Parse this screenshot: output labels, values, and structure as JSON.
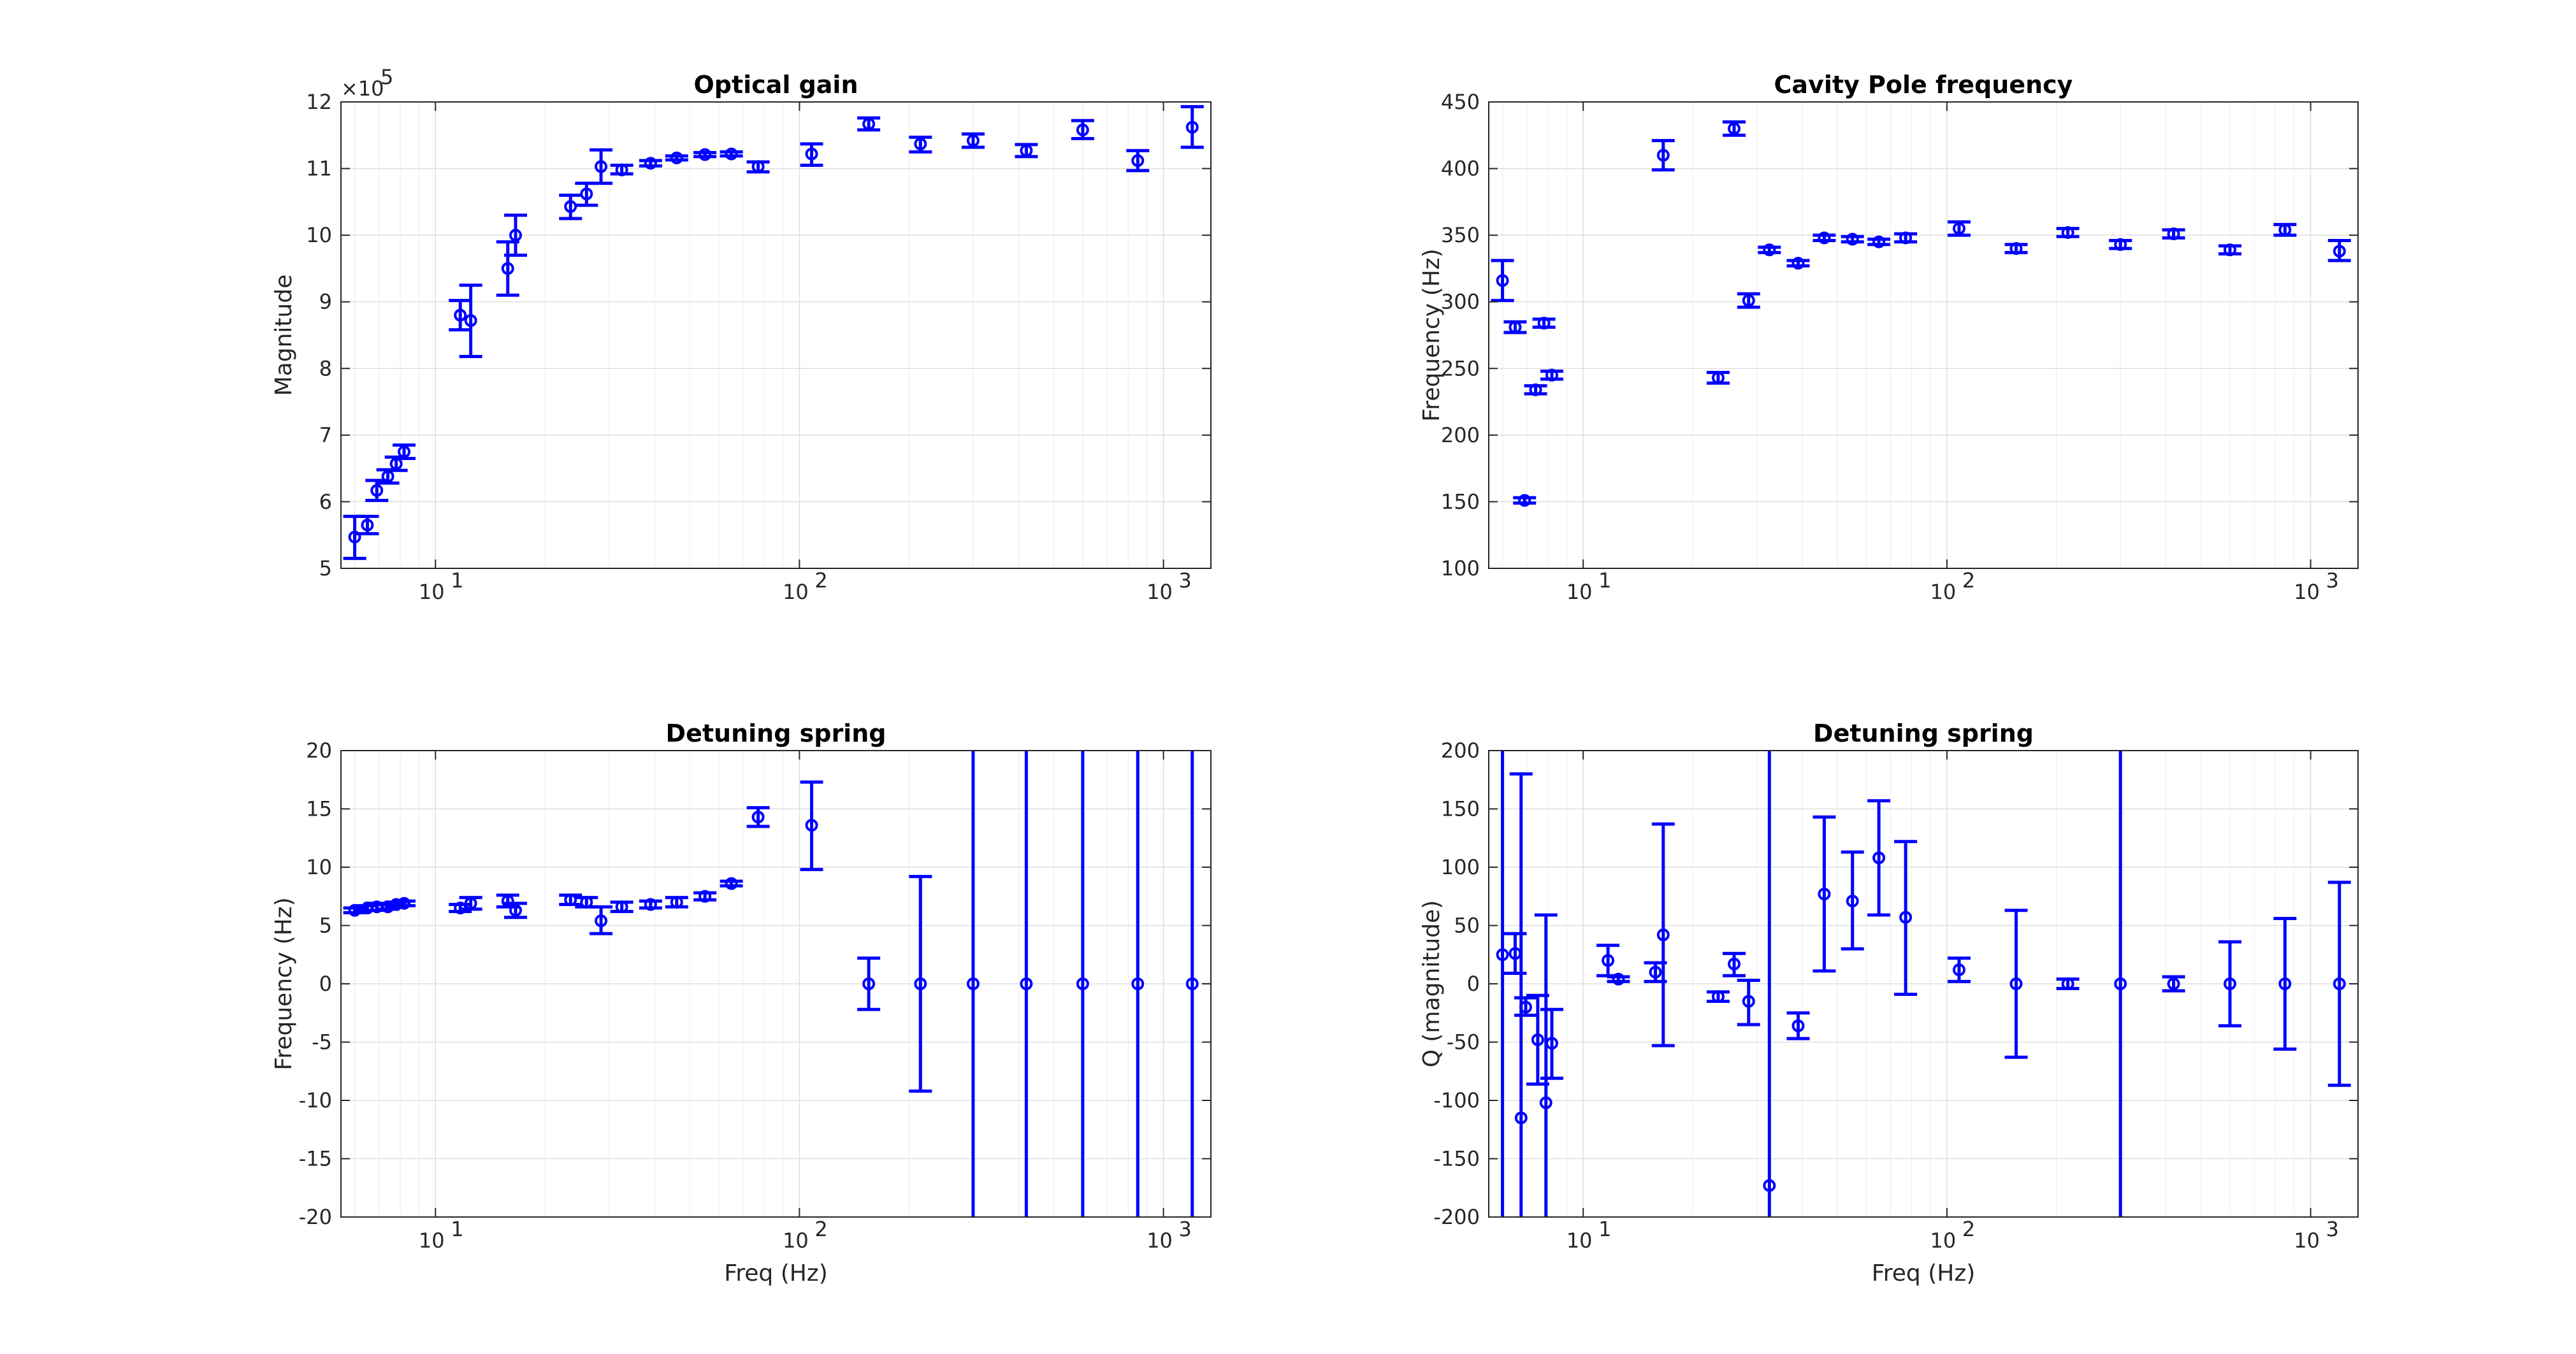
{
  "chart_data": [
    {
      "type": "scatter",
      "title": "Optical gain",
      "xlabel": "",
      "ylabel": "Magnitude",
      "y_exponent_label": "×10",
      "y_exponent_power": "5",
      "xscale": "log",
      "xlim": [
        5.5,
        1350
      ],
      "ylim": [
        5,
        12
      ],
      "yticks": [
        "5",
        "6",
        "7",
        "8",
        "9",
        "10",
        "11",
        "12"
      ],
      "xticks": [
        "10",
        "10",
        "10"
      ],
      "xtick_powers": [
        "1",
        "2",
        "3"
      ],
      "grid": true,
      "points": [
        {
          "x": 6.0,
          "y": 5.47,
          "lo": 5.15,
          "hi": 5.78
        },
        {
          "x": 6.5,
          "y": 5.65,
          "lo": 5.52,
          "hi": 5.78
        },
        {
          "x": 6.9,
          "y": 6.17,
          "lo": 6.02,
          "hi": 6.32
        },
        {
          "x": 7.4,
          "y": 6.38,
          "lo": 6.28,
          "hi": 6.48
        },
        {
          "x": 7.8,
          "y": 6.57,
          "lo": 6.47,
          "hi": 6.67
        },
        {
          "x": 8.2,
          "y": 6.75,
          "lo": 6.65,
          "hi": 6.85
        },
        {
          "x": 11.7,
          "y": 8.8,
          "lo": 8.58,
          "hi": 9.02
        },
        {
          "x": 12.5,
          "y": 8.72,
          "lo": 8.18,
          "hi": 9.25
        },
        {
          "x": 15.8,
          "y": 9.5,
          "lo": 9.1,
          "hi": 9.9
        },
        {
          "x": 16.6,
          "y": 10.0,
          "lo": 9.7,
          "hi": 10.3
        },
        {
          "x": 23.5,
          "y": 10.43,
          "lo": 10.25,
          "hi": 10.6
        },
        {
          "x": 26.0,
          "y": 10.62,
          "lo": 10.45,
          "hi": 10.78
        },
        {
          "x": 28.5,
          "y": 11.03,
          "lo": 10.78,
          "hi": 11.28
        },
        {
          "x": 32.5,
          "y": 10.98,
          "lo": 10.92,
          "hi": 11.05
        },
        {
          "x": 39.0,
          "y": 11.08,
          "lo": 11.04,
          "hi": 11.12
        },
        {
          "x": 46.0,
          "y": 11.16,
          "lo": 11.13,
          "hi": 11.19
        },
        {
          "x": 55.0,
          "y": 11.21,
          "lo": 11.18,
          "hi": 11.24
        },
        {
          "x": 65.0,
          "y": 11.22,
          "lo": 11.19,
          "hi": 11.25
        },
        {
          "x": 77.0,
          "y": 11.03,
          "lo": 10.95,
          "hi": 11.1
        },
        {
          "x": 108,
          "y": 11.22,
          "lo": 11.05,
          "hi": 11.37
        },
        {
          "x": 155,
          "y": 11.67,
          "lo": 11.58,
          "hi": 11.76
        },
        {
          "x": 215,
          "y": 11.37,
          "lo": 11.25,
          "hi": 11.47
        },
        {
          "x": 300,
          "y": 11.42,
          "lo": 11.32,
          "hi": 11.52
        },
        {
          "x": 420,
          "y": 11.27,
          "lo": 11.18,
          "hi": 11.36
        },
        {
          "x": 600,
          "y": 11.58,
          "lo": 11.45,
          "hi": 11.72
        },
        {
          "x": 850,
          "y": 11.12,
          "lo": 10.97,
          "hi": 11.27
        },
        {
          "x": 1200,
          "y": 11.62,
          "lo": 11.32,
          "hi": 11.93
        }
      ]
    },
    {
      "type": "scatter",
      "title": "Cavity Pole frequency",
      "xlabel": "",
      "ylabel": "Frequency (Hz)",
      "xscale": "log",
      "xlim": [
        5.5,
        1350
      ],
      "ylim": [
        100,
        450
      ],
      "yticks": [
        "100",
        "150",
        "200",
        "250",
        "300",
        "350",
        "400",
        "450"
      ],
      "xticks": [
        "10",
        "10",
        "10"
      ],
      "xtick_powers": [
        "1",
        "2",
        "3"
      ],
      "grid": true,
      "points": [
        {
          "x": 6.0,
          "y": 316,
          "lo": 301,
          "hi": 331
        },
        {
          "x": 6.5,
          "y": 281,
          "lo": 277,
          "hi": 285
        },
        {
          "x": 6.9,
          "y": 151,
          "lo": 149,
          "hi": 153
        },
        {
          "x": 7.4,
          "y": 234,
          "lo": 231,
          "hi": 237
        },
        {
          "x": 7.8,
          "y": 284,
          "lo": 281,
          "hi": 287
        },
        {
          "x": 8.2,
          "y": 245,
          "lo": 242,
          "hi": 248
        },
        {
          "x": 16.6,
          "y": 410,
          "lo": 399,
          "hi": 421
        },
        {
          "x": 23.5,
          "y": 243,
          "lo": 239,
          "hi": 247
        },
        {
          "x": 26.0,
          "y": 430,
          "lo": 425,
          "hi": 435
        },
        {
          "x": 28.5,
          "y": 301,
          "lo": 296,
          "hi": 306
        },
        {
          "x": 32.5,
          "y": 339,
          "lo": 337,
          "hi": 341
        },
        {
          "x": 39.0,
          "y": 329,
          "lo": 327,
          "hi": 331
        },
        {
          "x": 46.0,
          "y": 348,
          "lo": 346,
          "hi": 350
        },
        {
          "x": 55.0,
          "y": 347,
          "lo": 345,
          "hi": 349
        },
        {
          "x": 65.0,
          "y": 345,
          "lo": 343,
          "hi": 347
        },
        {
          "x": 77.0,
          "y": 348,
          "lo": 345,
          "hi": 351
        },
        {
          "x": 108,
          "y": 355,
          "lo": 350,
          "hi": 360
        },
        {
          "x": 155,
          "y": 340,
          "lo": 337,
          "hi": 343
        },
        {
          "x": 215,
          "y": 352,
          "lo": 349,
          "hi": 355
        },
        {
          "x": 300,
          "y": 343,
          "lo": 340,
          "hi": 346
        },
        {
          "x": 420,
          "y": 351,
          "lo": 348,
          "hi": 354
        },
        {
          "x": 600,
          "y": 339,
          "lo": 336,
          "hi": 342
        },
        {
          "x": 850,
          "y": 354,
          "lo": 350,
          "hi": 358
        },
        {
          "x": 1200,
          "y": 338,
          "lo": 331,
          "hi": 346
        }
      ]
    },
    {
      "type": "scatter",
      "title": "Detuning spring",
      "xlabel": "Freq (Hz)",
      "ylabel": "Frequency (Hz)",
      "xscale": "log",
      "xlim": [
        5.5,
        1350
      ],
      "ylim": [
        -20,
        20
      ],
      "yticks": [
        "-20",
        "-15",
        "-10",
        "-5",
        "0",
        "5",
        "10",
        "15",
        "20"
      ],
      "xticks": [
        "10",
        "10",
        "10"
      ],
      "xtick_powers": [
        "1",
        "2",
        "3"
      ],
      "grid": true,
      "points": [
        {
          "x": 6.0,
          "y": 6.3,
          "lo": 6.1,
          "hi": 6.5
        },
        {
          "x": 6.5,
          "y": 6.5,
          "lo": 6.3,
          "hi": 6.7
        },
        {
          "x": 6.9,
          "y": 6.6,
          "lo": 6.3,
          "hi": 6.9
        },
        {
          "x": 7.4,
          "y": 6.6,
          "lo": 6.4,
          "hi": 6.8
        },
        {
          "x": 7.8,
          "y": 6.8,
          "lo": 6.6,
          "hi": 7.0
        },
        {
          "x": 8.2,
          "y": 6.9,
          "lo": 6.7,
          "hi": 7.1
        },
        {
          "x": 11.7,
          "y": 6.5,
          "lo": 6.2,
          "hi": 6.8
        },
        {
          "x": 12.5,
          "y": 6.9,
          "lo": 6.4,
          "hi": 7.4
        },
        {
          "x": 15.8,
          "y": 7.1,
          "lo": 6.6,
          "hi": 7.6
        },
        {
          "x": 16.6,
          "y": 6.3,
          "lo": 5.7,
          "hi": 6.9
        },
        {
          "x": 23.5,
          "y": 7.2,
          "lo": 6.8,
          "hi": 7.6
        },
        {
          "x": 26.0,
          "y": 7.0,
          "lo": 6.6,
          "hi": 7.4
        },
        {
          "x": 28.5,
          "y": 5.4,
          "lo": 4.3,
          "hi": 6.6
        },
        {
          "x": 32.5,
          "y": 6.6,
          "lo": 6.2,
          "hi": 7.0
        },
        {
          "x": 39.0,
          "y": 6.8,
          "lo": 6.5,
          "hi": 7.1
        },
        {
          "x": 46.0,
          "y": 7.0,
          "lo": 6.6,
          "hi": 7.4
        },
        {
          "x": 55.0,
          "y": 7.5,
          "lo": 7.2,
          "hi": 7.8
        },
        {
          "x": 65.0,
          "y": 8.6,
          "lo": 8.4,
          "hi": 8.8
        },
        {
          "x": 77.0,
          "y": 14.3,
          "lo": 13.5,
          "hi": 15.1
        },
        {
          "x": 108,
          "y": 13.6,
          "lo": 9.8,
          "hi": 17.3
        },
        {
          "x": 155,
          "y": 0,
          "lo": -2.2,
          "hi": 2.2
        },
        {
          "x": 215,
          "y": 0,
          "lo": -9.2,
          "hi": 9.2
        },
        {
          "x": 300,
          "y": 0,
          "lo": -25,
          "hi": 25
        },
        {
          "x": 420,
          "y": 0,
          "lo": -25,
          "hi": 25
        },
        {
          "x": 600,
          "y": 0,
          "lo": -25,
          "hi": 25
        },
        {
          "x": 850,
          "y": 0,
          "lo": -25,
          "hi": 25
        },
        {
          "x": 1200,
          "y": 0,
          "lo": -25,
          "hi": 25
        }
      ]
    },
    {
      "type": "scatter",
      "title": "Detuning spring",
      "xlabel": "Freq (Hz)",
      "ylabel": "Q (magnitude)",
      "xscale": "log",
      "xlim": [
        5.5,
        1350
      ],
      "ylim": [
        -200,
        200
      ],
      "yticks": [
        "-200",
        "-150",
        "-100",
        "-50",
        "0",
        "50",
        "100",
        "150",
        "200"
      ],
      "xticks": [
        "10",
        "10",
        "10"
      ],
      "xtick_powers": [
        "1",
        "2",
        "3"
      ],
      "grid": true,
      "points": [
        {
          "x": 6.0,
          "y": 25,
          "lo": -250,
          "hi": 250
        },
        {
          "x": 6.5,
          "y": 26,
          "lo": 9,
          "hi": 43
        },
        {
          "x": 6.75,
          "y": -115,
          "lo": -250,
          "hi": 180
        },
        {
          "x": 6.95,
          "y": -20,
          "lo": -27,
          "hi": -12
        },
        {
          "x": 7.5,
          "y": -48,
          "lo": -86,
          "hi": -10
        },
        {
          "x": 7.9,
          "y": -102,
          "lo": -250,
          "hi": 59
        },
        {
          "x": 8.2,
          "y": -51,
          "lo": -81,
          "hi": -22
        },
        {
          "x": 11.7,
          "y": 20,
          "lo": 7,
          "hi": 33
        },
        {
          "x": 12.5,
          "y": 4,
          "lo": 2,
          "hi": 6
        },
        {
          "x": 15.8,
          "y": 10,
          "lo": 2,
          "hi": 18
        },
        {
          "x": 16.6,
          "y": 42,
          "lo": -53,
          "hi": 137
        },
        {
          "x": 23.5,
          "y": -11,
          "lo": -15,
          "hi": -7
        },
        {
          "x": 26.0,
          "y": 17,
          "lo": 7,
          "hi": 26
        },
        {
          "x": 28.5,
          "y": -15,
          "lo": -35,
          "hi": 3
        },
        {
          "x": 32.5,
          "y": -173,
          "lo": -250,
          "hi": 250
        },
        {
          "x": 39.0,
          "y": -36,
          "lo": -47,
          "hi": -25
        },
        {
          "x": 46.0,
          "y": 77,
          "lo": 11,
          "hi": 143
        },
        {
          "x": 55.0,
          "y": 71,
          "lo": 30,
          "hi": 113
        },
        {
          "x": 65.0,
          "y": 108,
          "lo": 59,
          "hi": 157
        },
        {
          "x": 77.0,
          "y": 57,
          "lo": -9,
          "hi": 122
        },
        {
          "x": 108,
          "y": 12,
          "lo": 2,
          "hi": 22
        },
        {
          "x": 155,
          "y": 0,
          "lo": -63,
          "hi": 63
        },
        {
          "x": 215,
          "y": 0,
          "lo": -4,
          "hi": 4
        },
        {
          "x": 300,
          "y": 0,
          "lo": -250,
          "hi": 250
        },
        {
          "x": 420,
          "y": 0,
          "lo": -6,
          "hi": 6
        },
        {
          "x": 600,
          "y": 0,
          "lo": -36,
          "hi": 36
        },
        {
          "x": 850,
          "y": 0,
          "lo": -56,
          "hi": 56
        },
        {
          "x": 1200,
          "y": 0,
          "lo": -87,
          "hi": 87
        }
      ]
    }
  ]
}
